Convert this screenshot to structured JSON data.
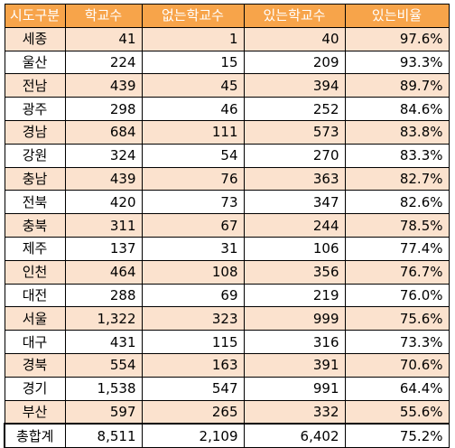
{
  "table": {
    "headers": [
      "시도구분",
      "학교수",
      "없는학교수",
      "있는학교수",
      "있는비율"
    ],
    "rows": [
      [
        "세종",
        "41",
        "1",
        "40",
        "97.6%"
      ],
      [
        "울산",
        "224",
        "15",
        "209",
        "93.3%"
      ],
      [
        "전남",
        "439",
        "45",
        "394",
        "89.7%"
      ],
      [
        "광주",
        "298",
        "46",
        "252",
        "84.6%"
      ],
      [
        "경남",
        "684",
        "111",
        "573",
        "83.8%"
      ],
      [
        "강원",
        "324",
        "54",
        "270",
        "83.3%"
      ],
      [
        "충남",
        "439",
        "76",
        "363",
        "82.7%"
      ],
      [
        "전북",
        "420",
        "73",
        "347",
        "82.6%"
      ],
      [
        "충북",
        "311",
        "67",
        "244",
        "78.5%"
      ],
      [
        "제주",
        "137",
        "31",
        "106",
        "77.4%"
      ],
      [
        "인천",
        "464",
        "108",
        "356",
        "76.7%"
      ],
      [
        "대전",
        "288",
        "69",
        "219",
        "76.0%"
      ],
      [
        "서울",
        "1,322",
        "323",
        "999",
        "75.6%"
      ],
      [
        "대구",
        "431",
        "115",
        "316",
        "73.3%"
      ],
      [
        "경북",
        "554",
        "163",
        "391",
        "70.6%"
      ],
      [
        "경기",
        "1,538",
        "547",
        "991",
        "64.4%"
      ],
      [
        "부산",
        "597",
        "265",
        "332",
        "55.6%"
      ]
    ],
    "total": [
      "총합계",
      "8,511",
      "2,109",
      "6,402",
      "75.2%"
    ]
  },
  "colors": {
    "header_bg": "#f7a44a",
    "band_bg": "#fbe2ce"
  }
}
